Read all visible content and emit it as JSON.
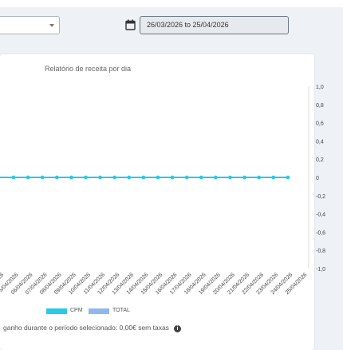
{
  "filters": {
    "period_select_value": "",
    "date_range": "26/03/2026 to 25/04/2026"
  },
  "chart_title": "Relatório de receita por dia",
  "chart_data": {
    "type": "line",
    "title": "Relatório de receita por dia",
    "x": [
      "05/04/2026",
      "06/04/2026",
      "07/04/2026",
      "08/04/2026",
      "09/04/2026",
      "10/04/2026",
      "11/04/2026",
      "12/04/2026",
      "13/04/2026",
      "14/04/2026",
      "15/04/2026",
      "16/04/2026",
      "17/04/2026",
      "18/04/2026",
      "19/04/2026",
      "20/04/2026",
      "21/04/2026",
      "22/04/2026",
      "23/04/2026",
      "24/04/2026",
      "25/04/2026"
    ],
    "x_tick_labels_visible": [
      "...04/2026",
      "05/04/2026",
      "06/04/2026",
      "07/04/2026",
      "08/04/2026",
      "09/04/2026",
      "10/04/2026",
      "11/04/2026",
      "12/04/2026",
      "13/04/2026",
      "14/04/2026",
      "15/04/2026",
      "16/04/2026",
      "17/04/2026",
      "18/04/2026",
      "19/04/2026",
      "20/04/2026",
      "21/04/2026",
      "22/04/2026",
      "23/04/2026",
      "24/04/2026",
      "25/04/2026"
    ],
    "series": [
      {
        "name": "CPM",
        "color": "#29c9e8",
        "values": [
          0,
          0,
          0,
          0,
          0,
          0,
          0,
          0,
          0,
          0,
          0,
          0,
          0,
          0,
          0,
          0,
          0,
          0,
          0,
          0,
          0
        ]
      },
      {
        "name": "TOTAL",
        "color": "#8fb7ec",
        "values": [
          0,
          0,
          0,
          0,
          0,
          0,
          0,
          0,
          0,
          0,
          0,
          0,
          0,
          0,
          0,
          0,
          0,
          0,
          0,
          0,
          0
        ]
      }
    ],
    "ylim": [
      -1.0,
      1.0
    ],
    "y_ticks": [
      "1,0",
      "0,8",
      "0,6",
      "0,4",
      "0,2",
      "0",
      "-0,2",
      "-0,4",
      "-0,6",
      "-0,8",
      "-1,0"
    ],
    "grid": false,
    "legend_position": "bottom"
  },
  "legend": [
    {
      "label": "CPM",
      "color": "#29c9e8"
    },
    {
      "label": "TOTAL",
      "color": "#8fb7ec"
    }
  ],
  "footer_text": "ganho durante o período selecionado: 0,00€ sem taxas",
  "icons": {
    "calendar": "calendar-icon",
    "info": "info-icon",
    "dropdown": "chevron-down-icon"
  }
}
